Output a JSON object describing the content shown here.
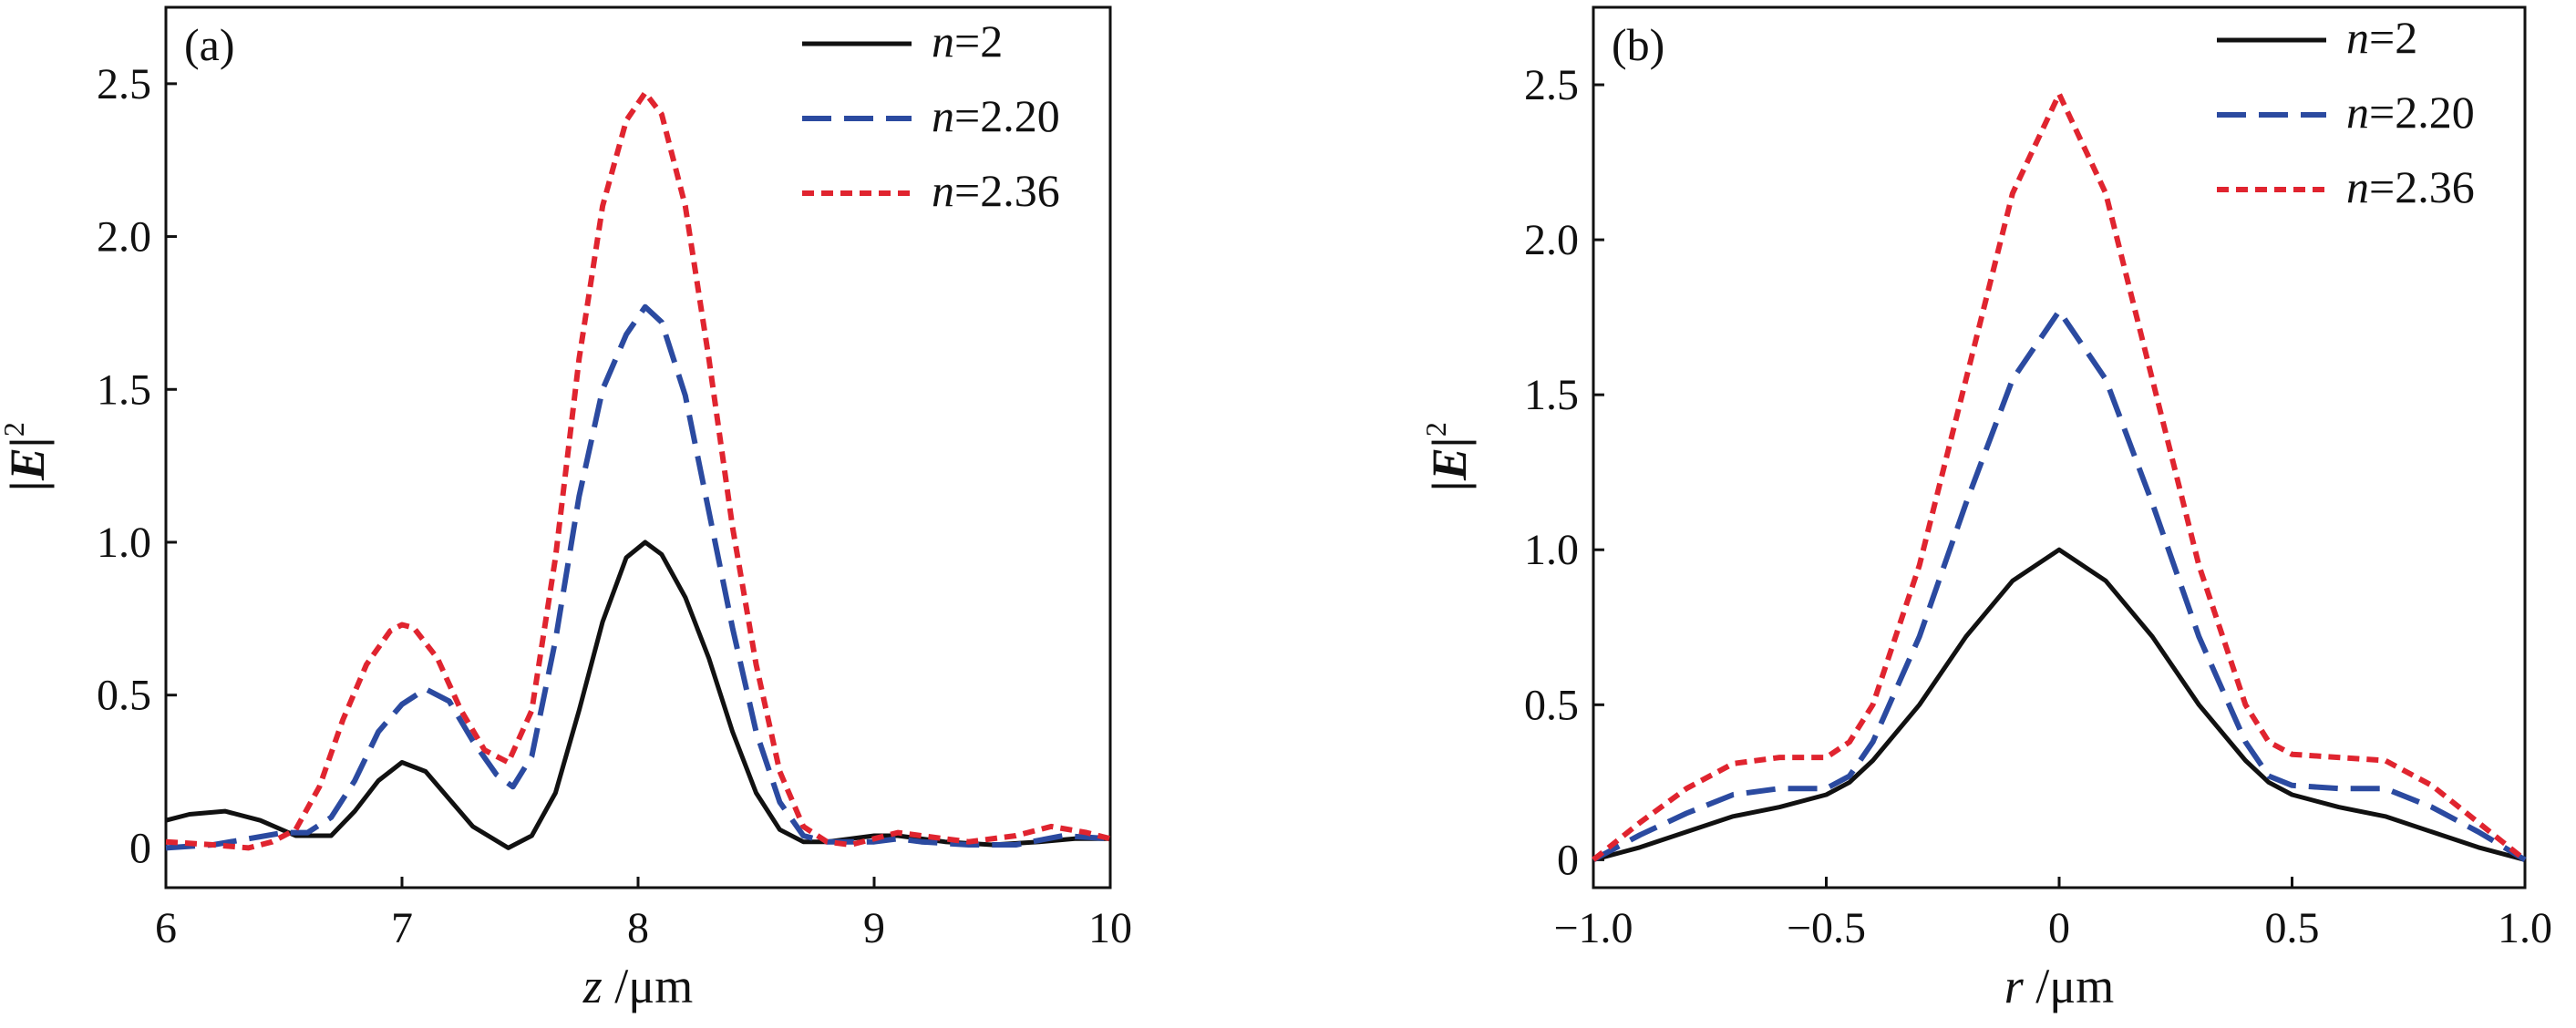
{
  "chart_data": [
    {
      "type": "line",
      "panel_label": "(a)",
      "xlabel": {
        "var": "z",
        "unit": "/μm"
      },
      "ylabel": {
        "main": "|E|",
        "sup": "2"
      },
      "xlim": [
        6,
        10
      ],
      "ylim": [
        -0.13,
        2.75
      ],
      "xticks": [
        6,
        7,
        8,
        9,
        10
      ],
      "xtick_labels": [
        "6",
        "7",
        "8",
        "9",
        "10"
      ],
      "yticks": [
        0,
        0.5,
        1.0,
        1.5,
        2.0,
        2.5
      ],
      "ytick_labels": [
        "0",
        "0.5",
        "1.0",
        "1.5",
        "2.0",
        "2.5"
      ],
      "legend_position": "top-right",
      "series": [
        {
          "name": "n=2",
          "legend_var": "n",
          "legend_val": "=2",
          "color": "#111111",
          "style": "solid",
          "points": [
            [
              6.0,
              0.09
            ],
            [
              6.1,
              0.11
            ],
            [
              6.25,
              0.12
            ],
            [
              6.4,
              0.09
            ],
            [
              6.55,
              0.04
            ],
            [
              6.7,
              0.04
            ],
            [
              6.8,
              0.12
            ],
            [
              6.9,
              0.22
            ],
            [
              7.0,
              0.28
            ],
            [
              7.1,
              0.25
            ],
            [
              7.2,
              0.16
            ],
            [
              7.3,
              0.07
            ],
            [
              7.45,
              0.0
            ],
            [
              7.55,
              0.04
            ],
            [
              7.65,
              0.18
            ],
            [
              7.75,
              0.45
            ],
            [
              7.85,
              0.74
            ],
            [
              7.95,
              0.95
            ],
            [
              8.03,
              1.0
            ],
            [
              8.1,
              0.96
            ],
            [
              8.2,
              0.82
            ],
            [
              8.3,
              0.62
            ],
            [
              8.4,
              0.38
            ],
            [
              8.5,
              0.18
            ],
            [
              8.6,
              0.06
            ],
            [
              8.7,
              0.02
            ],
            [
              8.8,
              0.02
            ],
            [
              8.9,
              0.03
            ],
            [
              9.0,
              0.04
            ],
            [
              9.1,
              0.04
            ],
            [
              9.3,
              0.02
            ],
            [
              9.5,
              0.01
            ],
            [
              9.7,
              0.02
            ],
            [
              9.85,
              0.03
            ],
            [
              10.0,
              0.03
            ]
          ]
        },
        {
          "name": "n=2.20",
          "legend_var": "n",
          "legend_val": "=2.20",
          "color": "#2b4aa0",
          "style": "dashed",
          "points": [
            [
              6.0,
              0.0
            ],
            [
              6.2,
              0.01
            ],
            [
              6.35,
              0.03
            ],
            [
              6.5,
              0.05
            ],
            [
              6.6,
              0.05
            ],
            [
              6.7,
              0.1
            ],
            [
              6.8,
              0.22
            ],
            [
              6.9,
              0.38
            ],
            [
              7.0,
              0.47
            ],
            [
              7.1,
              0.52
            ],
            [
              7.2,
              0.48
            ],
            [
              7.3,
              0.35
            ],
            [
              7.4,
              0.24
            ],
            [
              7.47,
              0.2
            ],
            [
              7.55,
              0.3
            ],
            [
              7.65,
              0.68
            ],
            [
              7.75,
              1.15
            ],
            [
              7.85,
              1.5
            ],
            [
              7.95,
              1.68
            ],
            [
              8.03,
              1.77
            ],
            [
              8.1,
              1.72
            ],
            [
              8.2,
              1.48
            ],
            [
              8.3,
              1.1
            ],
            [
              8.4,
              0.72
            ],
            [
              8.5,
              0.38
            ],
            [
              8.6,
              0.15
            ],
            [
              8.7,
              0.04
            ],
            [
              8.8,
              0.02
            ],
            [
              9.0,
              0.02
            ],
            [
              9.1,
              0.03
            ],
            [
              9.2,
              0.02
            ],
            [
              9.4,
              0.01
            ],
            [
              9.6,
              0.01
            ],
            [
              9.8,
              0.04
            ],
            [
              10.0,
              0.03
            ]
          ]
        },
        {
          "name": "n=2.36",
          "legend_var": "n",
          "legend_val": "=2.36",
          "color": "#e0242f",
          "style": "dotted",
          "points": [
            [
              6.0,
              0.02
            ],
            [
              6.2,
              0.01
            ],
            [
              6.35,
              0.0
            ],
            [
              6.45,
              0.02
            ],
            [
              6.55,
              0.06
            ],
            [
              6.65,
              0.2
            ],
            [
              6.75,
              0.42
            ],
            [
              6.85,
              0.6
            ],
            [
              6.95,
              0.71
            ],
            [
              7.0,
              0.73
            ],
            [
              7.05,
              0.72
            ],
            [
              7.15,
              0.62
            ],
            [
              7.25,
              0.45
            ],
            [
              7.35,
              0.32
            ],
            [
              7.45,
              0.28
            ],
            [
              7.55,
              0.45
            ],
            [
              7.65,
              0.95
            ],
            [
              7.75,
              1.6
            ],
            [
              7.85,
              2.1
            ],
            [
              7.95,
              2.38
            ],
            [
              8.03,
              2.47
            ],
            [
              8.1,
              2.4
            ],
            [
              8.2,
              2.1
            ],
            [
              8.3,
              1.6
            ],
            [
              8.4,
              1.05
            ],
            [
              8.5,
              0.6
            ],
            [
              8.6,
              0.25
            ],
            [
              8.7,
              0.07
            ],
            [
              8.8,
              0.02
            ],
            [
              8.9,
              0.01
            ],
            [
              9.0,
              0.03
            ],
            [
              9.1,
              0.05
            ],
            [
              9.2,
              0.04
            ],
            [
              9.4,
              0.02
            ],
            [
              9.6,
              0.04
            ],
            [
              9.75,
              0.07
            ],
            [
              9.9,
              0.05
            ],
            [
              10.0,
              0.03
            ]
          ]
        }
      ]
    },
    {
      "type": "line",
      "panel_label": "(b)",
      "xlabel": {
        "var": "r",
        "unit": "/μm"
      },
      "ylabel": {
        "main": "|E|",
        "sup": "2"
      },
      "xlim": [
        -1.0,
        1.0
      ],
      "ylim": [
        -0.09,
        2.75
      ],
      "xticks": [
        -1.0,
        -0.5,
        0,
        0.5,
        1.0
      ],
      "xtick_labels": [
        "−1.0",
        "−0.5",
        "0",
        "0.5",
        "1.0"
      ],
      "yticks": [
        0,
        0.5,
        1.0,
        1.5,
        2.0,
        2.5
      ],
      "ytick_labels": [
        "0",
        "0.5",
        "1.0",
        "1.5",
        "2.0",
        "2.5"
      ],
      "legend_position": "top-right",
      "series": [
        {
          "name": "n=2",
          "legend_var": "n",
          "legend_val": "=2",
          "color": "#111111",
          "style": "solid",
          "points": [
            [
              -1.0,
              0.0
            ],
            [
              -0.9,
              0.04
            ],
            [
              -0.8,
              0.09
            ],
            [
              -0.7,
              0.14
            ],
            [
              -0.6,
              0.17
            ],
            [
              -0.5,
              0.21
            ],
            [
              -0.45,
              0.25
            ],
            [
              -0.4,
              0.32
            ],
            [
              -0.3,
              0.5
            ],
            [
              -0.2,
              0.72
            ],
            [
              -0.1,
              0.9
            ],
            [
              0.0,
              1.0
            ],
            [
              0.1,
              0.9
            ],
            [
              0.2,
              0.72
            ],
            [
              0.3,
              0.5
            ],
            [
              0.4,
              0.32
            ],
            [
              0.45,
              0.25
            ],
            [
              0.5,
              0.21
            ],
            [
              0.6,
              0.17
            ],
            [
              0.7,
              0.14
            ],
            [
              0.8,
              0.09
            ],
            [
              0.9,
              0.04
            ],
            [
              1.0,
              0.0
            ]
          ]
        },
        {
          "name": "n=2.20",
          "legend_var": "n",
          "legend_val": "=2.20",
          "color": "#2b4aa0",
          "style": "dashed",
          "points": [
            [
              -1.0,
              0.0
            ],
            [
              -0.9,
              0.08
            ],
            [
              -0.8,
              0.15
            ],
            [
              -0.7,
              0.21
            ],
            [
              -0.6,
              0.23
            ],
            [
              -0.5,
              0.23
            ],
            [
              -0.45,
              0.27
            ],
            [
              -0.4,
              0.38
            ],
            [
              -0.3,
              0.72
            ],
            [
              -0.2,
              1.15
            ],
            [
              -0.1,
              1.55
            ],
            [
              0.0,
              1.77
            ],
            [
              0.1,
              1.55
            ],
            [
              0.2,
              1.15
            ],
            [
              0.3,
              0.72
            ],
            [
              0.4,
              0.38
            ],
            [
              0.45,
              0.27
            ],
            [
              0.5,
              0.24
            ],
            [
              0.6,
              0.23
            ],
            [
              0.7,
              0.23
            ],
            [
              0.8,
              0.17
            ],
            [
              0.9,
              0.09
            ],
            [
              1.0,
              0.0
            ]
          ]
        },
        {
          "name": "n=2.36",
          "legend_var": "n",
          "legend_val": "=2.36",
          "color": "#e0242f",
          "style": "dotted",
          "points": [
            [
              -1.0,
              0.0
            ],
            [
              -0.9,
              0.12
            ],
            [
              -0.8,
              0.23
            ],
            [
              -0.7,
              0.31
            ],
            [
              -0.6,
              0.33
            ],
            [
              -0.5,
              0.33
            ],
            [
              -0.45,
              0.38
            ],
            [
              -0.4,
              0.5
            ],
            [
              -0.3,
              0.95
            ],
            [
              -0.2,
              1.55
            ],
            [
              -0.1,
              2.15
            ],
            [
              0.0,
              2.47
            ],
            [
              0.1,
              2.15
            ],
            [
              0.2,
              1.55
            ],
            [
              0.3,
              0.95
            ],
            [
              0.4,
              0.5
            ],
            [
              0.45,
              0.38
            ],
            [
              0.5,
              0.34
            ],
            [
              0.6,
              0.33
            ],
            [
              0.7,
              0.32
            ],
            [
              0.8,
              0.24
            ],
            [
              0.9,
              0.12
            ],
            [
              1.0,
              0.0
            ]
          ]
        }
      ]
    }
  ]
}
